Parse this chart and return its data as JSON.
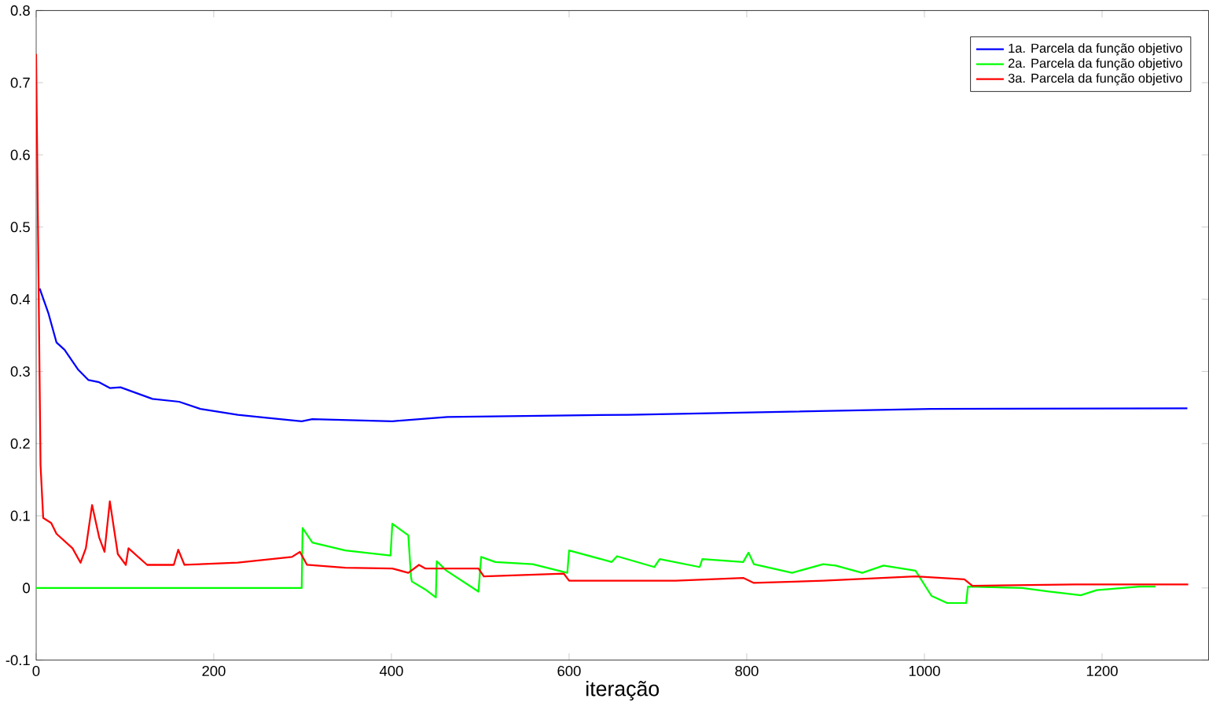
{
  "chart_data": {
    "type": "line",
    "xlabel": "iteração",
    "xlim": [
      0,
      1320
    ],
    "ylim": [
      -0.1,
      0.8
    ],
    "xticks": [
      0,
      200,
      400,
      600,
      800,
      1000,
      1200
    ],
    "yticks": [
      -0.1,
      0,
      0.1,
      0.2,
      0.3,
      0.4,
      0.5,
      0.6,
      0.7,
      0.8
    ],
    "grid": false,
    "legend": "top right",
    "marker": "none",
    "line_style": "solid",
    "series": [
      {
        "name": "1a. Parcela da função objetivo",
        "color": "#0000ff",
        "x": [
          4,
          14,
          23,
          32,
          47,
          59,
          71,
          83,
          95,
          131,
          161,
          185,
          227,
          257,
          299,
          311,
          401,
          463,
          667,
          1007,
          1296
        ],
        "values": [
          0.415,
          0.38,
          0.34,
          0.33,
          0.303,
          0.288,
          0.285,
          0.277,
          0.278,
          0.262,
          0.258,
          0.248,
          0.24,
          0.236,
          0.231,
          0.234,
          0.231,
          0.237,
          0.24,
          0.248,
          0.249
        ]
      },
      {
        "name": "2a. Parcela da função objetivo",
        "color": "#00ff00",
        "x": [
          0,
          299,
          300,
          311,
          348,
          399,
          401,
          419,
          422,
          423,
          438,
          450,
          451,
          462,
          498,
          501,
          517,
          559,
          598,
          600,
          648,
          654,
          696,
          702,
          747,
          750,
          796,
          802,
          808,
          851,
          886,
          900,
          930,
          954,
          990,
          1008,
          1026,
          1047,
          1049,
          1110,
          1140,
          1176,
          1194,
          1242,
          1260
        ],
        "values": [
          0,
          0,
          0.083,
          0.063,
          0.052,
          0.045,
          0.089,
          0.073,
          0.016,
          0.009,
          -0.002,
          -0.013,
          0.037,
          0.024,
          -0.005,
          0.043,
          0.036,
          0.033,
          0.021,
          0.052,
          0.036,
          0.044,
          0.029,
          0.04,
          0.029,
          0.04,
          0.036,
          0.049,
          0.033,
          0.021,
          0.033,
          0.031,
          0.021,
          0.031,
          0.024,
          -0.011,
          -0.021,
          -0.021,
          0.002,
          0,
          -0.005,
          -0.01,
          -0.003,
          0.002,
          0.002
        ]
      },
      {
        "name": "3a. Parcela da função objetivo",
        "color": "#ff0000",
        "x": [
          0,
          5,
          8,
          17,
          23,
          41,
          50,
          56,
          63,
          71,
          77,
          83,
          92,
          101,
          104,
          125,
          155,
          160,
          167,
          227,
          288,
          297,
          305,
          348,
          401,
          419,
          431,
          438,
          498,
          504,
          594,
          600,
          720,
          796,
          808,
          886,
          990,
          1045,
          1054,
          1170,
          1297
        ],
        "values": [
          0.74,
          0.17,
          0.097,
          0.09,
          0.075,
          0.055,
          0.035,
          0.055,
          0.115,
          0.07,
          0.05,
          0.12,
          0.047,
          0.032,
          0.055,
          0.032,
          0.032,
          0.053,
          0.032,
          0.035,
          0.043,
          0.05,
          0.032,
          0.028,
          0.027,
          0.021,
          0.032,
          0.027,
          0.027,
          0.016,
          0.02,
          0.01,
          0.01,
          0.014,
          0.007,
          0.01,
          0.016,
          0.012,
          0.003,
          0.005,
          0.005
        ]
      }
    ]
  }
}
